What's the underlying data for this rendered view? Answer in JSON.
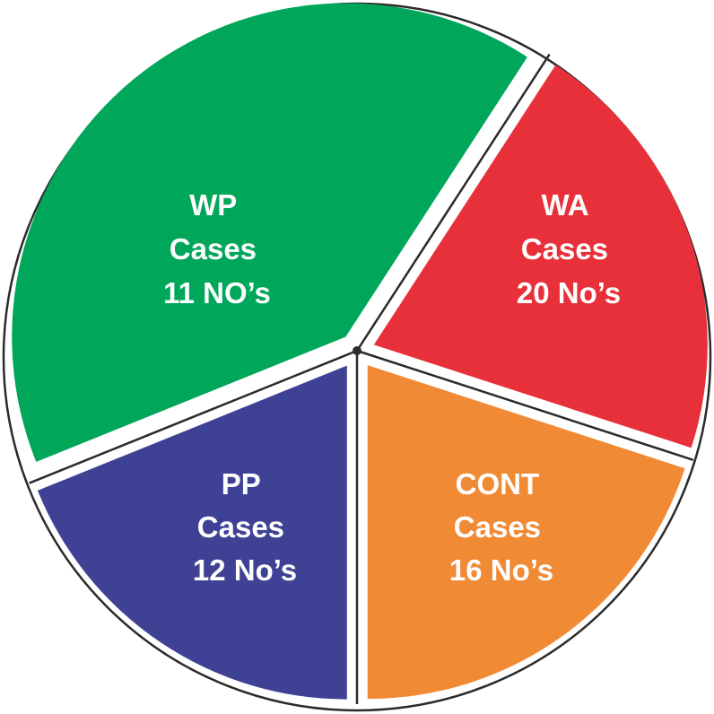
{
  "chart_data": {
    "type": "pie",
    "title": "",
    "slices": [
      {
        "key": "WP",
        "line1": "WP",
        "line2": "Cases",
        "line3": "11 NO’s",
        "value": 11,
        "color": "#00a65a"
      },
      {
        "key": "WA",
        "line1": "WA",
        "line2": "Cases",
        "line3": "20 No’s",
        "value": 20,
        "color": "#e8303a"
      },
      {
        "key": "CONT",
        "line1": "CONT",
        "line2": "Cases",
        "line3": "16 No’s",
        "value": 16,
        "color": "#f18a35"
      },
      {
        "key": "PP",
        "line1": "PP",
        "line2": "Cases",
        "line3": "12 No’s",
        "value": 12,
        "color": "#3f4195"
      }
    ],
    "outline_color": "#2b2b2b"
  }
}
